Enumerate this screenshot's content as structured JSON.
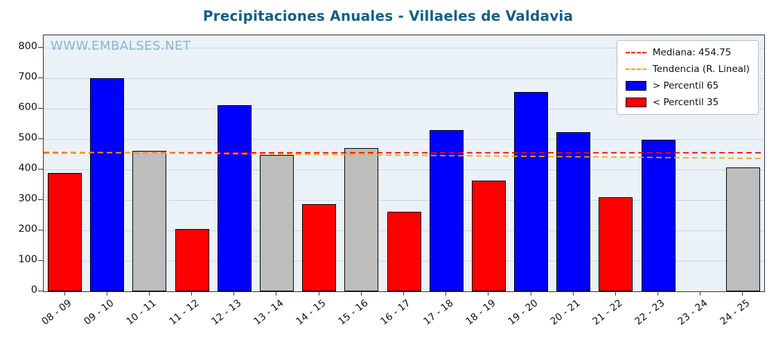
{
  "title": "Precipitaciones Anuales - Villaeles de Valdavia",
  "watermark": "WWW.EMBALSES.NET",
  "legend": {
    "items": [
      {
        "type": "line",
        "color_key": "median",
        "label": "Mediana: 454.75"
      },
      {
        "type": "line",
        "color_key": "trend",
        "label": "Tendencia (R. Lineal)"
      },
      {
        "type": "patch",
        "color_key": "p65",
        "label": "> Percentil 65"
      },
      {
        "type": "patch",
        "color_key": "p35",
        "label": "< Percentil 35"
      }
    ]
  },
  "colors": {
    "median": "#ff0000",
    "trend": "#ffa500",
    "p65": "#0000ff",
    "p35": "#ff0000",
    "normal": "#bdbdbd",
    "title": "#155f82",
    "watermark": "#8ab6d2",
    "plot_bg": "#eaf2f7"
  },
  "chart_data": {
    "type": "bar",
    "title": "Precipitaciones Anuales - Villaeles de Valdavia",
    "xlabel": "",
    "ylabel": "",
    "categories": [
      "08 - 09",
      "09 - 10",
      "10 - 11",
      "11 - 12",
      "12 - 13",
      "13 - 14",
      "14 - 15",
      "15 - 16",
      "16 - 17",
      "17 - 18",
      "18 - 19",
      "19 - 20",
      "20 - 21",
      "21 - 22",
      "22 - 23",
      "23 - 24",
      "24 - 25"
    ],
    "values": [
      388,
      700,
      462,
      205,
      611,
      447,
      287,
      469,
      262,
      528,
      363,
      654,
      523,
      308,
      497,
      null,
      406
    ],
    "bar_color_keys": [
      "p35",
      "p65",
      "normal",
      "p35",
      "p65",
      "normal",
      "p35",
      "normal",
      "p35",
      "p65",
      "p35",
      "p65",
      "p65",
      "p35",
      "p65",
      null,
      "normal"
    ],
    "median": 454.75,
    "trend_line": {
      "start": 457,
      "end": 436
    },
    "ylim": [
      0,
      840
    ],
    "yticks": [
      0,
      100,
      200,
      300,
      400,
      500,
      600,
      700,
      800
    ],
    "grid": true,
    "legend_position": "upper right"
  }
}
